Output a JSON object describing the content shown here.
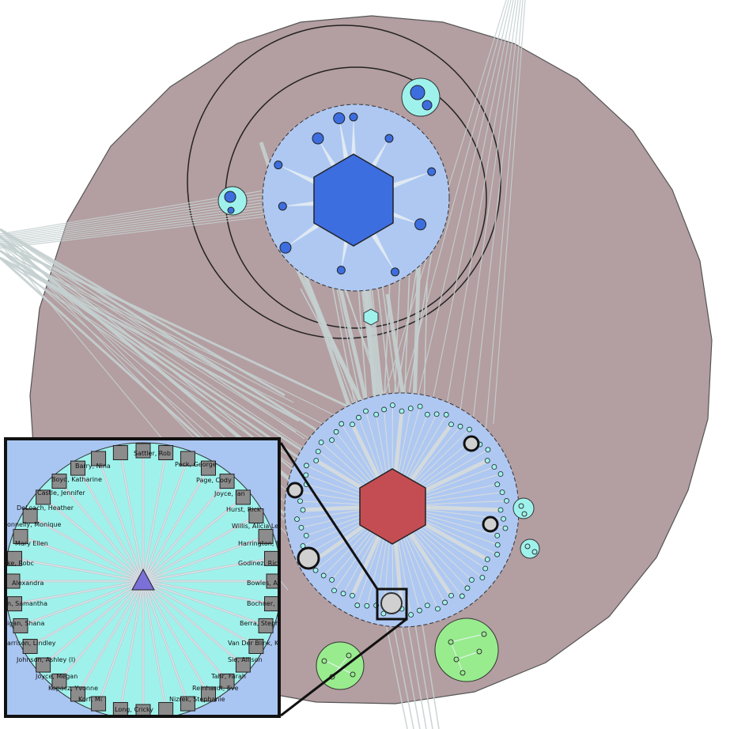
{
  "colors": {
    "outer_region": "#b39ea1",
    "cluster_fill": "#aec8f2",
    "center_hex_blue": "#3d6ee0",
    "center_hex_red": "#c44d53",
    "node_cyan": "#9ff2ec",
    "node_green": "#98ec8e",
    "edge": "#c5d0d0",
    "inset_center": "#7b70d8"
  },
  "inset": {
    "names_right": [
      {
        "label": "Sattler, Rob"
      },
      {
        "label": "Peck, George"
      },
      {
        "label": "Page, Cody"
      },
      {
        "label": "Joyce, Ian"
      },
      {
        "label": "Hurst, Rick"
      },
      {
        "label": "Willis, Alicia Leigh"
      },
      {
        "label": "Harrington, E"
      },
      {
        "label": "Godinez, Rick"
      },
      {
        "label": "Bowles, An"
      },
      {
        "label": "Bochner, R"
      },
      {
        "label": "Berra, Stephe"
      },
      {
        "label": "Van Der Blink, Kiel"
      },
      {
        "label": "Sie, Allison"
      },
      {
        "label": "Tahr, Farah"
      },
      {
        "label": "Reinhardt, Eve"
      },
      {
        "label": "Nizrek, Stephanie"
      }
    ],
    "names_left": [
      {
        "label": "Barry, Nina"
      },
      {
        "label": "Boyd, Katharine"
      },
      {
        "label": "Castle, Jennifer"
      },
      {
        "label": "DeLoach, Heather"
      },
      {
        "label": "onnelly, Monique"
      },
      {
        "label": "Mary Ellen"
      },
      {
        "label": "ke, Robc"
      },
      {
        "label": "Alexandra"
      },
      {
        "label": "n, Samantha"
      },
      {
        "label": "igan, Shana"
      },
      {
        "label": "arrison, Lindley"
      },
      {
        "label": "Johnson, Ashley (I)"
      },
      {
        "label": "Joyce, Megan"
      },
      {
        "label": "Kopacz, Yvonne"
      },
      {
        "label": "Korf, Mi"
      },
      {
        "label": "Long, Cricky"
      }
    ]
  }
}
